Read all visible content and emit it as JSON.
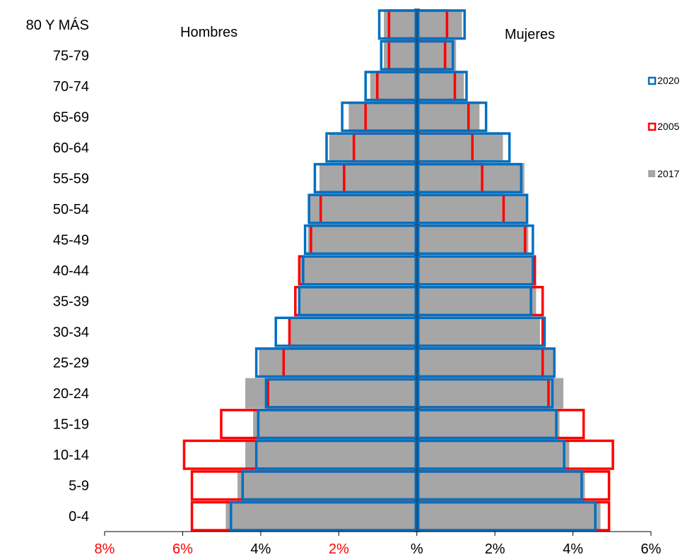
{
  "chart_data": {
    "type": "bar",
    "subtype": "population-pyramid",
    "categories": [
      "0-4",
      "5-9",
      "10-14",
      "15-19",
      "20-24",
      "25-29",
      "30-34",
      "35-39",
      "40-44",
      "45-49",
      "50-54",
      "55-59",
      "60-64",
      "65-69",
      "70-74",
      "75-79",
      "80 Y MÁS"
    ],
    "left_label": "Hombres",
    "right_label": "Mujeres",
    "x_ticks": [
      {
        "value": -8,
        "label": "8%",
        "color": "#ff0000"
      },
      {
        "value": -6,
        "label": "6%",
        "color": "#ff0000"
      },
      {
        "value": -4,
        "label": "4%",
        "color": "#000000"
      },
      {
        "value": -2,
        "label": "2%",
        "color": "#ff0000"
      },
      {
        "value": 0,
        "label": "%",
        "color": "#000000"
      },
      {
        "value": 2,
        "label": "2%",
        "color": "#000000"
      },
      {
        "value": 4,
        "label": "4%",
        "color": "#000000"
      },
      {
        "value": 6,
        "label": "6%",
        "color": "#000000"
      }
    ],
    "xlim": [
      -8,
      6
    ],
    "legend_position": "right",
    "series": [
      {
        "name": "2017",
        "style": "filled",
        "color": "#a6a6a6",
        "hombres": [
          4.9,
          4.6,
          4.4,
          4.2,
          4.4,
          4.05,
          3.3,
          3.0,
          3.0,
          2.8,
          2.75,
          2.5,
          2.25,
          1.75,
          1.2,
          0.85,
          0.85
        ],
        "mujeres": [
          4.7,
          4.3,
          3.9,
          3.65,
          3.75,
          3.55,
          3.15,
          3.05,
          3.0,
          2.85,
          2.85,
          2.75,
          2.2,
          1.6,
          1.2,
          1.0,
          1.15
        ]
      },
      {
        "name": "2005",
        "style": "outline",
        "color": "#ff0000",
        "hombres": [
          5.8,
          5.8,
          6.0,
          5.05,
          3.85,
          3.45,
          3.3,
          3.15,
          3.05,
          2.75,
          2.5,
          1.9,
          1.65,
          1.35,
          1.05,
          0.75,
          0.75
        ],
        "mujeres": [
          4.95,
          4.95,
          5.05,
          4.3,
          3.4,
          3.25,
          3.25,
          3.25,
          3.05,
          2.8,
          2.25,
          1.7,
          1.45,
          1.35,
          1.0,
          0.75,
          0.8
        ]
      },
      {
        "name": "2020",
        "style": "outline",
        "color": "#0070c0",
        "hombres": [
          4.8,
          4.5,
          4.15,
          4.1,
          3.9,
          4.15,
          3.65,
          3.05,
          2.95,
          2.9,
          2.8,
          2.65,
          2.35,
          1.95,
          1.35,
          0.95,
          1.0
        ],
        "mujeres": [
          4.6,
          4.25,
          3.8,
          3.6,
          3.5,
          3.55,
          3.3,
          2.95,
          3.0,
          3.0,
          2.85,
          2.7,
          2.4,
          1.8,
          1.3,
          0.95,
          1.25
        ]
      }
    ],
    "legend_order": [
      "2020",
      "2005",
      "2017"
    ]
  }
}
